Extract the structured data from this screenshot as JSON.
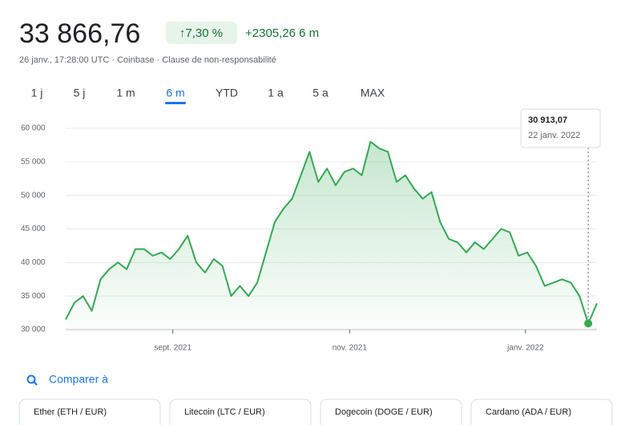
{
  "header": {
    "price": "33 866,76",
    "change_pct": "↑7,30 %",
    "change": "+2305,26 6 m",
    "meta": "26 janv., 17:28:00 UTC · Coinbase · Clause de non-responsabilité"
  },
  "ranges": [
    "1 j",
    "5 j",
    "1 m",
    "6 m",
    "YTD",
    "1 a",
    "5 a",
    "MAX"
  ],
  "active_range": 3,
  "chart_data": {
    "type": "line",
    "series": [
      {
        "color": "#34a853",
        "values": [
          31500,
          34000,
          35000,
          32800,
          37500,
          39000,
          40000,
          39000,
          42000,
          42000,
          41000,
          41500,
          40500,
          42000,
          44000,
          40000,
          38500,
          40500,
          39500,
          35000,
          36500,
          35000,
          37000,
          41500,
          46000,
          48000,
          49500,
          53000,
          56500,
          52000,
          54000,
          51500,
          53500,
          54000,
          53000,
          58000,
          57000,
          56500,
          52000,
          53000,
          51000,
          49500,
          50500,
          46000,
          43500,
          43000,
          41500,
          43000,
          42000,
          43500,
          45000,
          44500,
          41000,
          41500,
          39500,
          36500,
          37000,
          37500,
          37000,
          35000,
          30913.07,
          33900
        ]
      }
    ],
    "xlim": [
      0,
      61
    ],
    "xticks": [
      {
        "value": 12.3,
        "label": "sept. 2021"
      },
      {
        "value": 32.6,
        "label": "nov. 2021"
      },
      {
        "value": 52.8,
        "label": "janv. 2022"
      }
    ],
    "ylim": [
      30000,
      60000
    ],
    "yticks": [
      {
        "value": 30000,
        "label": "30 000"
      },
      {
        "value": 35000,
        "label": "35 000"
      },
      {
        "value": 40000,
        "label": "40 000"
      },
      {
        "value": 45000,
        "label": "45 000"
      },
      {
        "value": 50000,
        "label": "50 000"
      },
      {
        "value": 55000,
        "label": "55 000"
      },
      {
        "value": 60000,
        "label": "60 000"
      }
    ],
    "grid": true,
    "annotation": {
      "text": "30 913,07",
      "date": "22 janv. 2022",
      "x": 60,
      "y": 30913.07
    }
  },
  "compare": {
    "label": "Comparer à",
    "items": [
      "Ether (ETH / EUR)",
      "Litecoin (LTC / EUR)",
      "Dogecoin (DOGE / EUR)",
      "Cardano (ADA / EUR)"
    ]
  }
}
